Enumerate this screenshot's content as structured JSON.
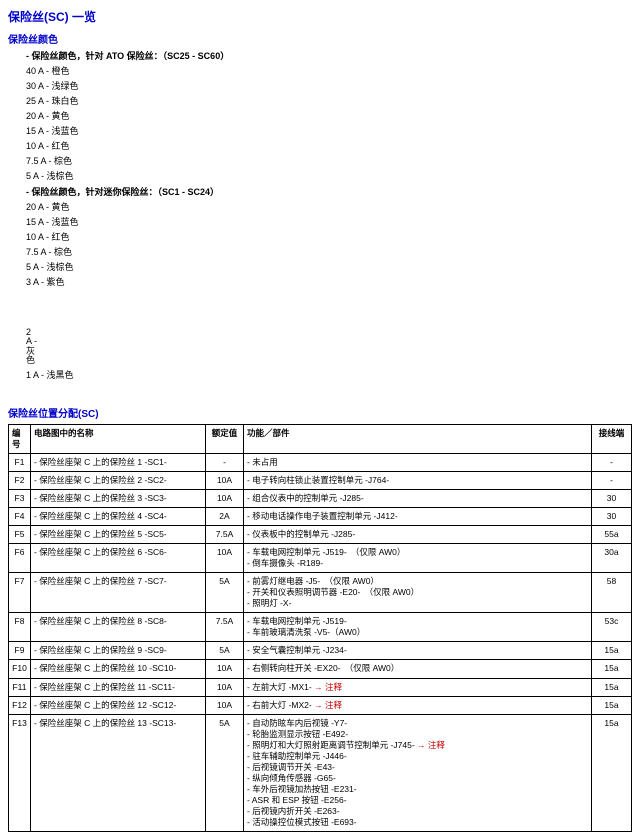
{
  "colors": {
    "heading": "#0000cc",
    "warn": "#cc0000"
  },
  "title": "保险丝(SC) 一览",
  "section_colors": {
    "heading": "保险丝颜色",
    "ato": {
      "lead": "保险丝颜色，针对 ATO 保险丝：（SC25 - SC60）",
      "items": [
        "40 A - 橙色",
        "30 A - 浅绿色",
        "25 A - 珠白色",
        "20 A - 黄色",
        "15 A - 浅蓝色",
        "10 A - 红色",
        "7.5 A - 棕色",
        "5 A - 浅棕色"
      ]
    },
    "mini": {
      "lead": "保险丝颜色，针对迷你保险丝：（SC1 - SC24）",
      "items": [
        "20 A - 黄色",
        "15 A - 浅蓝色",
        "10 A - 红色",
        "7.5 A - 棕色",
        "5 A - 浅棕色",
        "3 A - 紫色"
      ]
    },
    "extra": {
      "narrow": "2 A - 灰色",
      "last": "1 A - 浅黑色"
    }
  },
  "section_table": {
    "heading": "保险丝位置分配(SC)",
    "headers": {
      "idx": "编号",
      "name": "电路图中的名称",
      "val": "额定值",
      "func": "功能／部件",
      "wire": "接线端"
    },
    "rows": [
      {
        "idx": "F1",
        "name": "保险丝座架 C 上的保险丝 1 -SC1-",
        "val": "-",
        "func": [
          "未占用"
        ],
        "wire": "-"
      },
      {
        "idx": "F2",
        "name": "保险丝座架 C 上的保险丝 2 -SC2-",
        "val": "10A",
        "func": [
          "电子转向柱锁止装置控制单元 -J764-"
        ],
        "wire": "-"
      },
      {
        "idx": "F3",
        "name": "保险丝座架 C 上的保险丝 3 -SC3-",
        "val": "10A",
        "func": [
          "组合仪表中的控制单元 -J285-"
        ],
        "wire": "30"
      },
      {
        "idx": "F4",
        "name": "保险丝座架 C 上的保险丝 4 -SC4-",
        "val": "2A",
        "func": [
          "移动电话操作电子装置控制单元 -J412-"
        ],
        "wire": "30"
      },
      {
        "idx": "F5",
        "name": "保险丝座架 C 上的保险丝 5 -SC5-",
        "val": "7.5A",
        "func": [
          "仪表板中的控制单元 -J285-"
        ],
        "wire": "55a"
      },
      {
        "idx": "F6",
        "name": "保险丝座架 C 上的保险丝 6 -SC6-",
        "val": "10A",
        "func": [
          "车载电网控制单元 -J519-　（仅限 AW0）",
          "倒车摄像头 -R189-"
        ],
        "wire": "30a"
      },
      {
        "idx": "F7",
        "name": "保险丝座架 C 上的保险丝 7 -SC7-",
        "val": "5A",
        "func": [
          "前雾灯继电器 -J5-　（仅限 AW0）",
          "开关和仪表照明调节器 -E20-　（仅限 AW0）",
          "照明灯 -X-"
        ],
        "wire": "58"
      },
      {
        "idx": "F8",
        "name": "保险丝座架 C 上的保险丝 8 -SC8-",
        "val": "7.5A",
        "func": [
          "车载电网控制单元 -J519-",
          "车前玻璃清洗泵 -V5-（AW0）"
        ],
        "wire": "53c"
      },
      {
        "idx": "F9",
        "name": "保险丝座架 C 上的保险丝 9 -SC9-",
        "val": "5A",
        "func": [
          "安全气囊控制单元 -J234-"
        ],
        "wire": "15a"
      },
      {
        "idx": "F10",
        "name": "保险丝座架 C 上的保险丝 10 -SC10-",
        "val": "10A",
        "func": [
          "右侧转向柱开关 -EX20-　（仅限 AW0）"
        ],
        "wire": "15a"
      },
      {
        "idx": "F11",
        "name": "保险丝座架 C 上的保险丝 11 -SC11-",
        "val": "10A",
        "func": [
          "左前大灯 -MX1- <r>→ 注释</r>"
        ],
        "wire": "15a"
      },
      {
        "idx": "F12",
        "name": "保险丝座架 C 上的保险丝 12 -SC12-",
        "val": "10A",
        "func": [
          "右前大灯 -MX2- <r>→ 注释</r>"
        ],
        "wire": "15a"
      },
      {
        "idx": "F13",
        "name": "保险丝座架 C 上的保险丝 13 -SC13-",
        "val": "5A",
        "func": [
          "自动防眩车内后视镜 -Y7-",
          "轮胎监测显示按钮 -E492-",
          "照明灯和大灯照射距离调节控制单元 -J745- <r>→ 注释</r>",
          "驻车辅助控制单元 -J446-",
          "后视镜调节开关 -E43-",
          "纵向倾角传感器 -G65-",
          "车外后视镜加热按钮 -E231-",
          "ASR 和 ESP 按钮 -E256-",
          "后视镜内折开关 -E263-",
          "活动操控位模式按钮 -E693-"
        ],
        "wire": "15a"
      }
    ]
  }
}
